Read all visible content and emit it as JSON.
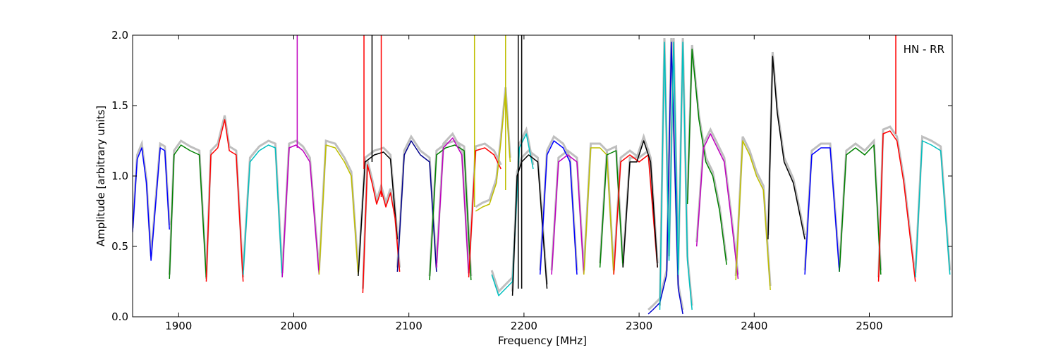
{
  "chart_data": {
    "type": "line",
    "title": "",
    "annotation": "HN - RR",
    "xlabel": "Frequency [MHz]",
    "ylabel": "Amplitude [arbitrary units]",
    "xlim": [
      1860,
      2572
    ],
    "ylim": [
      0.0,
      2.0
    ],
    "xticks": [
      1900,
      2000,
      2100,
      2200,
      2300,
      2400,
      2500
    ],
    "xtick_labels": [
      "1900",
      "2000",
      "2100",
      "2200",
      "2300",
      "2400",
      "2500"
    ],
    "yticks": [
      0.0,
      0.5,
      1.0,
      1.5,
      2.0
    ],
    "ytick_labels": [
      "0.0",
      "0.5",
      "1.0",
      "1.5",
      "2.0"
    ],
    "grid": false,
    "background_color": "#bfbfbf",
    "series": [
      {
        "color": "#0000ff",
        "x": [
          1860,
          1864,
          1868,
          1872,
          1876,
          1880,
          1884,
          1888,
          1892
        ],
        "y": [
          0.6,
          1.12,
          1.2,
          0.95,
          0.4,
          0.8,
          1.2,
          1.18,
          0.62
        ]
      },
      {
        "color": "#008000",
        "x": [
          1892,
          1896,
          1902,
          1910,
          1918,
          1924
        ],
        "y": [
          0.27,
          1.15,
          1.22,
          1.18,
          1.15,
          0.27
        ]
      },
      {
        "color": "#ff0000",
        "x": [
          1924,
          1928,
          1934,
          1940,
          1944,
          1950,
          1956
        ],
        "y": [
          0.25,
          1.15,
          1.2,
          1.4,
          1.18,
          1.15,
          0.25
        ]
      },
      {
        "color": "#00bfbf",
        "x": [
          1956,
          1962,
          1970,
          1978,
          1984,
          1990
        ],
        "y": [
          0.3,
          1.1,
          1.18,
          1.22,
          1.2,
          0.28
        ]
      },
      {
        "color": "#bf00bf",
        "x": [
          1990,
          1996,
          2002,
          2008,
          2014,
          2022
        ],
        "y": [
          0.28,
          1.2,
          1.22,
          1.18,
          1.1,
          0.3
        ]
      },
      {
        "color": "#bfbf00",
        "x": [
          2022,
          2028,
          2036,
          2044,
          2050,
          2056
        ],
        "y": [
          0.3,
          1.22,
          1.2,
          1.1,
          1.0,
          0.3
        ]
      },
      {
        "color": "#000000",
        "x": [
          2056,
          2062,
          2070,
          2078,
          2084,
          2090
        ],
        "y": [
          0.29,
          1.1,
          1.15,
          1.17,
          1.12,
          0.55
        ]
      },
      {
        "color": "#ff0000",
        "x": [
          2060,
          2064,
          2068,
          2072,
          2076,
          2080,
          2084,
          2088,
          2092
        ],
        "y": [
          0.17,
          1.08,
          0.95,
          0.8,
          0.9,
          0.78,
          0.88,
          0.7,
          0.32
        ]
      },
      {
        "color": "#00008b",
        "x": [
          2090,
          2096,
          2102,
          2110,
          2118,
          2124
        ],
        "y": [
          0.32,
          1.15,
          1.25,
          1.15,
          1.1,
          0.32
        ]
      },
      {
        "color": "#008000",
        "x": [
          2118,
          2124,
          2132,
          2140,
          2148,
          2154
        ],
        "y": [
          0.26,
          1.15,
          1.2,
          1.22,
          1.18,
          0.26
        ]
      },
      {
        "color": "#bf00bf",
        "x": [
          2124,
          2130,
          2138,
          2146,
          2152
        ],
        "y": [
          0.35,
          1.2,
          1.27,
          1.15,
          0.3
        ]
      },
      {
        "color": "#ff0000",
        "x": [
          2152,
          2158,
          2166,
          2174,
          2180
        ],
        "y": [
          0.28,
          1.18,
          1.2,
          1.15,
          1.05
        ]
      },
      {
        "color": "#bfbf00",
        "x": [
          2158,
          2164,
          2170,
          2176,
          2180,
          2184,
          2188
        ],
        "y": [
          0.75,
          0.78,
          0.8,
          0.95,
          1.25,
          1.6,
          1.1
        ]
      },
      {
        "color": "#00bfbf",
        "x": [
          2172,
          2178,
          2184,
          2190,
          2196,
          2202,
          2208
        ],
        "y": [
          0.3,
          0.15,
          0.2,
          0.25,
          1.2,
          1.3,
          1.05
        ]
      },
      {
        "color": "#000000",
        "x": [
          2190,
          2194,
          2198,
          2204,
          2212,
          2220
        ],
        "y": [
          0.15,
          1.0,
          1.1,
          1.15,
          1.1,
          0.2
        ]
      },
      {
        "color": "#0000ff",
        "x": [
          2214,
          2220,
          2226,
          2234,
          2240,
          2246
        ],
        "y": [
          0.3,
          1.15,
          1.25,
          1.2,
          1.1,
          0.3
        ]
      },
      {
        "color": "#bf00bf",
        "x": [
          2224,
          2230,
          2238,
          2246,
          2252
        ],
        "y": [
          0.3,
          1.1,
          1.15,
          1.1,
          0.3
        ]
      },
      {
        "color": "#bfbf00",
        "x": [
          2252,
          2258,
          2266,
          2272,
          2278
        ],
        "y": [
          0.3,
          1.2,
          1.2,
          1.15,
          0.3
        ]
      },
      {
        "color": "#008000",
        "x": [
          2266,
          2272,
          2280,
          2286
        ],
        "y": [
          0.35,
          1.15,
          1.18,
          0.35
        ]
      },
      {
        "color": "#ff0000",
        "x": [
          2278,
          2284,
          2292,
          2300,
          2308,
          2316
        ],
        "y": [
          0.3,
          1.1,
          1.15,
          1.1,
          1.15,
          0.35
        ]
      },
      {
        "color": "#000000",
        "x": [
          2286,
          2292,
          2298,
          2304,
          2310,
          2316
        ],
        "y": [
          0.35,
          1.1,
          1.1,
          1.25,
          1.1,
          0.35
        ]
      },
      {
        "color": "#0000cd",
        "x": [
          2308,
          2312,
          2318,
          2324,
          2328,
          2334,
          2338
        ],
        "y": [
          0.02,
          0.05,
          0.1,
          0.3,
          1.95,
          0.2,
          0.02
        ]
      },
      {
        "color": "#00bfbf",
        "x": [
          2318,
          2322,
          2326,
          2330,
          2334,
          2338,
          2342,
          2346
        ],
        "y": [
          0.05,
          1.95,
          0.4,
          1.95,
          0.3,
          1.95,
          0.4,
          0.05
        ]
      },
      {
        "color": "#008000",
        "x": [
          2342,
          2346,
          2352,
          2358,
          2364,
          2370,
          2376
        ],
        "y": [
          0.8,
          1.9,
          1.4,
          1.1,
          1.0,
          0.75,
          0.37
        ]
      },
      {
        "color": "#bf00bf",
        "x": [
          2350,
          2356,
          2362,
          2368,
          2374,
          2380,
          2386
        ],
        "y": [
          0.5,
          1.2,
          1.3,
          1.2,
          1.1,
          0.7,
          0.27
        ]
      },
      {
        "color": "#bfbf00",
        "x": [
          2384,
          2390,
          2396,
          2402,
          2408,
          2414
        ],
        "y": [
          0.26,
          1.25,
          1.15,
          1.0,
          0.9,
          0.19
        ]
      },
      {
        "color": "#000000",
        "x": [
          2412,
          2416,
          2420,
          2426,
          2434,
          2444
        ],
        "y": [
          0.55,
          1.85,
          1.45,
          1.1,
          0.95,
          0.55
        ]
      },
      {
        "color": "#0000ff",
        "x": [
          2444,
          2450,
          2458,
          2466,
          2474
        ],
        "y": [
          0.3,
          1.15,
          1.2,
          1.2,
          0.32
        ]
      },
      {
        "color": "#008000",
        "x": [
          2474,
          2480,
          2488,
          2496,
          2504,
          2510
        ],
        "y": [
          0.32,
          1.15,
          1.2,
          1.15,
          1.22,
          0.3
        ]
      },
      {
        "color": "#ff0000",
        "x": [
          2508,
          2512,
          2518,
          2524,
          2530,
          2540
        ],
        "y": [
          0.25,
          1.3,
          1.32,
          1.25,
          0.95,
          0.25
        ]
      },
      {
        "color": "#00bfbf",
        "x": [
          2540,
          2546,
          2554,
          2562,
          2570
        ],
        "y": [
          0.28,
          1.25,
          1.22,
          1.18,
          0.3
        ]
      }
    ],
    "spikes": [
      {
        "color": "#bf00bf",
        "x": 2003,
        "y0": 1.2,
        "y1": 2.0
      },
      {
        "color": "#ff0000",
        "x": 2061,
        "y0": 1.05,
        "y1": 2.0
      },
      {
        "color": "#000000",
        "x": 2068,
        "y0": 1.1,
        "y1": 2.0
      },
      {
        "color": "#ff0000",
        "x": 2076,
        "y0": 0.85,
        "y1": 2.0
      },
      {
        "color": "#bfbf00",
        "x": 2157,
        "y0": 0.78,
        "y1": 2.0
      },
      {
        "color": "#bfbf00",
        "x": 2184,
        "y0": 0.9,
        "y1": 2.0
      },
      {
        "color": "#000000",
        "x": 2195,
        "y0": 0.2,
        "y1": 2.0
      },
      {
        "color": "#000000",
        "x": 2198,
        "y0": 0.2,
        "y1": 2.0
      },
      {
        "color": "#ff0000",
        "x": 2523,
        "y0": 1.3,
        "y1": 2.0
      }
    ]
  }
}
